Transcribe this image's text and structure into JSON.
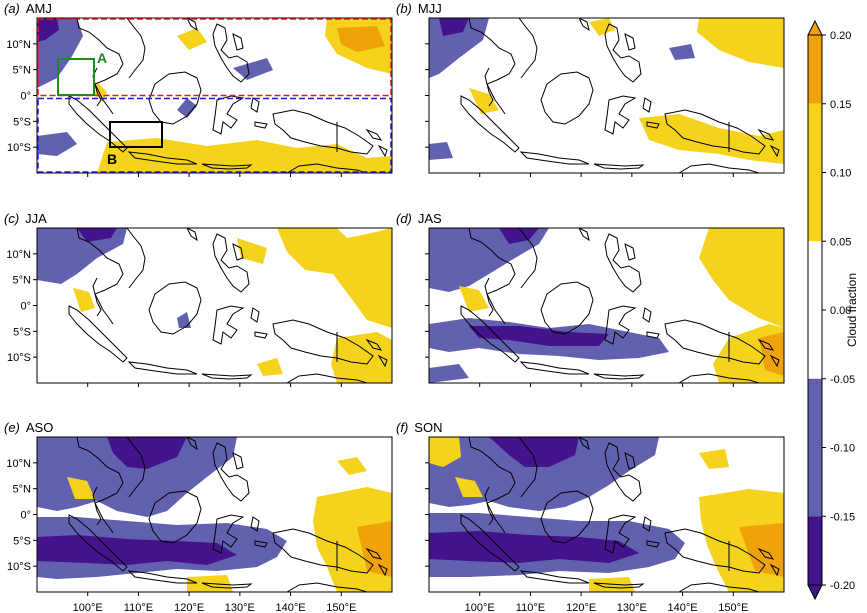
{
  "panels": [
    {
      "tag": "(a)",
      "label": "AMJ"
    },
    {
      "tag": "(b)",
      "label": "MJJ"
    },
    {
      "tag": "(c)",
      "label": "JJA"
    },
    {
      "tag": "(d)",
      "label": "JAS"
    },
    {
      "tag": "(e)",
      "label": "ASO"
    },
    {
      "tag": "(f)",
      "label": "SON"
    }
  ],
  "lat_ticks": [
    "10°N",
    "5°N",
    "0°",
    "5°S",
    "10°S"
  ],
  "lon_ticks": [
    "100°E",
    "110°E",
    "120°E",
    "130°E",
    "140°E",
    "150°E"
  ],
  "colorbar": {
    "title": "Cloud fraction",
    "labels": [
      "0.20",
      "0.15",
      "0.10",
      "0.05",
      "0.00",
      "-0.05",
      "-0.10",
      "-0.15",
      "-0.20"
    ],
    "colors": {
      "strong_pos": "#f0a20a",
      "pos": "#f5d31c",
      "neutral": "#ffffff",
      "neg": "#6261b0",
      "strong_neg": "#43138c"
    }
  },
  "boxes": {
    "a": "A",
    "b": "B",
    "colors": {
      "north": "#e8141e",
      "south": "#1d1dd9",
      "A": "#1e8a1e",
      "B": "#000000"
    }
  }
}
